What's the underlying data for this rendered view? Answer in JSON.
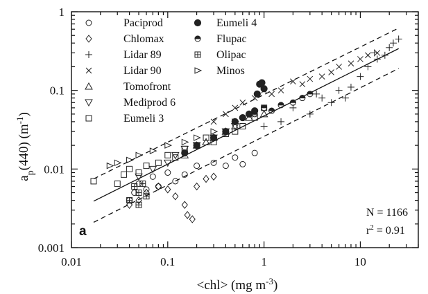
{
  "chart_data": {
    "type": "scatter",
    "xlabel": "<chl> (mg m",
    "xlabel_sup": "-3",
    "xlabel_tail": ")",
    "ylabel_main": "a",
    "ylabel_sub": "p",
    "ylabel_rest": "(440) (m",
    "ylabel_sup": "-1",
    "ylabel_tail": ")",
    "x_scale": "log",
    "y_scale": "log",
    "xlim": [
      0.01,
      40
    ],
    "ylim": [
      0.001,
      1
    ],
    "x_ticks": [
      {
        "value": 0.01,
        "label": "0.01"
      },
      {
        "value": 0.1,
        "label": "0.1"
      },
      {
        "value": 1,
        "label": "1"
      },
      {
        "value": 10,
        "label": "10"
      }
    ],
    "y_ticks": [
      {
        "value": 0.001,
        "label": "0.001"
      },
      {
        "value": 0.01,
        "label": "0.01"
      },
      {
        "value": 0.1,
        "label": "0.1"
      },
      {
        "value": 1,
        "label": "1"
      }
    ],
    "grid": false,
    "legend_position": "top-left",
    "legend_columns": 2,
    "panel_label": "a",
    "annotations": {
      "n_label": "N = 1166",
      "r2_prefix": "r",
      "r2_sup": "2",
      "r2_suffix": " = 0.91"
    },
    "fit_line": {
      "x": [
        0.017,
        25
      ],
      "y": [
        0.0039,
        0.34
      ],
      "style": "solid"
    },
    "confidence_bands": [
      {
        "x": [
          0.017,
          25
        ],
        "y": [
          0.0075,
          0.62
        ],
        "style": "dashed"
      },
      {
        "x": [
          0.017,
          25
        ],
        "y": [
          0.0021,
          0.19
        ],
        "style": "dashed"
      }
    ],
    "series": [
      {
        "name": "Paciprod",
        "marker": "circle",
        "x": [
          0.04,
          0.045,
          0.05,
          0.06,
          0.07,
          0.08,
          0.1,
          0.12,
          0.15,
          0.2,
          0.3,
          0.4,
          0.5,
          0.6,
          0.8
        ],
        "y": [
          0.004,
          0.005,
          0.0065,
          0.0055,
          0.008,
          0.006,
          0.009,
          0.007,
          0.0085,
          0.011,
          0.012,
          0.011,
          0.014,
          0.0115,
          0.016
        ]
      },
      {
        "name": "Chlomax",
        "marker": "diamond",
        "x": [
          0.04,
          0.05,
          0.06,
          0.08,
          0.1,
          0.12,
          0.15,
          0.16,
          0.18,
          0.2,
          0.25,
          0.3
        ],
        "y": [
          0.0035,
          0.004,
          0.005,
          0.006,
          0.0055,
          0.0045,
          0.0035,
          0.0026,
          0.0023,
          0.006,
          0.0075,
          0.008
        ]
      },
      {
        "name": "Lidar 89",
        "marker": "plus",
        "x": [
          1,
          1.5,
          2,
          3,
          4,
          5,
          6,
          8,
          10,
          12,
          15,
          18,
          20,
          22,
          25,
          3.5,
          7,
          14
        ],
        "y": [
          0.035,
          0.04,
          0.06,
          0.05,
          0.08,
          0.07,
          0.1,
          0.11,
          0.15,
          0.2,
          0.25,
          0.28,
          0.35,
          0.4,
          0.45,
          0.09,
          0.08,
          0.3
        ]
      },
      {
        "name": "Lidar 90",
        "marker": "x",
        "x": [
          0.3,
          0.4,
          0.5,
          0.6,
          0.8,
          1,
          1.2,
          1.5,
          2,
          2.5,
          3,
          4,
          5,
          6,
          8,
          10,
          12,
          15
        ],
        "y": [
          0.04,
          0.05,
          0.06,
          0.07,
          0.08,
          0.1,
          0.09,
          0.1,
          0.13,
          0.12,
          0.14,
          0.15,
          0.17,
          0.2,
          0.22,
          0.25,
          0.28,
          0.3
        ]
      },
      {
        "name": "Tomofront",
        "marker": "triangle-up",
        "x": [
          0.15,
          0.2,
          0.25,
          0.3,
          0.4,
          0.5,
          0.7,
          1
        ],
        "y": [
          0.015,
          0.02,
          0.022,
          0.025,
          0.03,
          0.035,
          0.045,
          0.05
        ]
      },
      {
        "name": "Mediprod 6",
        "marker": "triangle-down",
        "x": [
          0.05,
          0.07,
          0.1,
          0.12,
          0.15,
          0.2,
          0.3,
          0.4,
          0.5
        ],
        "y": [
          0.008,
          0.01,
          0.012,
          0.015,
          0.018,
          0.02,
          0.025,
          0.03,
          0.035
        ]
      },
      {
        "name": "Eumeli 3",
        "marker": "square",
        "x": [
          0.017,
          0.03,
          0.035,
          0.04,
          0.05,
          0.06,
          0.08,
          0.1,
          0.12,
          0.15,
          0.2,
          0.25,
          0.3,
          0.4,
          0.5,
          0.6,
          0.8,
          1
        ],
        "y": [
          0.007,
          0.0065,
          0.0085,
          0.01,
          0.009,
          0.011,
          0.012,
          0.015,
          0.014,
          0.018,
          0.02,
          0.025,
          0.022,
          0.028,
          0.03,
          0.035,
          0.045,
          0.06
        ]
      },
      {
        "name": "Eumeli 4",
        "marker": "filled-circle",
        "x": [
          0.15,
          0.2,
          0.3,
          0.4,
          0.5,
          0.6,
          0.7,
          0.8,
          0.9,
          1,
          0.85,
          0.95
        ],
        "y": [
          0.016,
          0.02,
          0.025,
          0.03,
          0.04,
          0.045,
          0.05,
          0.055,
          0.12,
          0.105,
          0.09,
          0.125
        ]
      },
      {
        "name": "Flupac",
        "marker": "half-circle",
        "x": [
          0.6,
          0.8,
          1,
          1.2,
          1.5,
          2,
          2.5,
          3
        ],
        "y": [
          0.045,
          0.05,
          0.06,
          0.055,
          0.065,
          0.07,
          0.08,
          0.09
        ]
      },
      {
        "name": "Olipac",
        "marker": "square-cross",
        "x": [
          0.04,
          0.05,
          0.06,
          0.05,
          0.045,
          0.055
        ],
        "y": [
          0.004,
          0.005,
          0.0045,
          0.0035,
          0.006,
          0.0065
        ]
      },
      {
        "name": "Minos",
        "marker": "triangle-right",
        "x": [
          0.025,
          0.03,
          0.04,
          0.05,
          0.07,
          0.1,
          0.15,
          0.2,
          0.3,
          0.5
        ],
        "y": [
          0.011,
          0.012,
          0.013,
          0.015,
          0.017,
          0.02,
          0.022,
          0.025,
          0.03,
          0.04
        ]
      }
    ]
  }
}
